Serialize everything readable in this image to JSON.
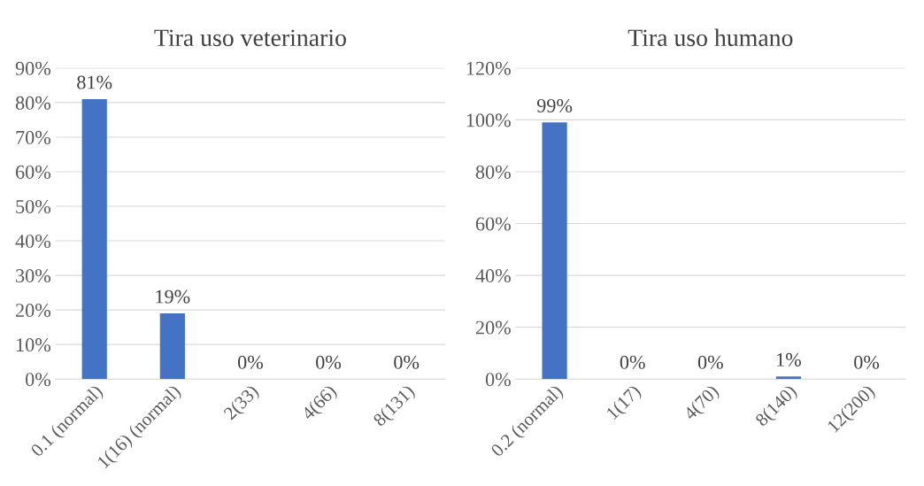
{
  "chart_data": [
    {
      "type": "bar",
      "title": "Tira uso veterinario",
      "categories": [
        "0.1 (normal)",
        "1(16) (normal)",
        "2(33)",
        "4(66)",
        "8(131)"
      ],
      "series": [
        {
          "color": "#4472c4",
          "values": [
            81,
            19,
            0,
            0,
            0
          ],
          "value_labels": [
            "81%",
            "19%",
            "0%",
            "0%",
            "0%"
          ]
        }
      ],
      "ylim": [
        0,
        90
      ],
      "yticks": [
        {
          "value": 0,
          "label": "0%"
        },
        {
          "value": 10,
          "label": "10%"
        },
        {
          "value": 20,
          "label": "20%"
        },
        {
          "value": 30,
          "label": "30%"
        },
        {
          "value": 40,
          "label": "40%"
        },
        {
          "value": 50,
          "label": "50%"
        },
        {
          "value": 60,
          "label": "60%"
        },
        {
          "value": 70,
          "label": "70%"
        },
        {
          "value": 80,
          "label": "80%"
        },
        {
          "value": 90,
          "label": "90%"
        }
      ],
      "grid": "y",
      "legend": false
    },
    {
      "type": "bar",
      "title": "Tira uso humano",
      "categories": [
        "0.2 (normal)",
        "1(17)",
        "4(70)",
        "8(140)",
        "12(200)"
      ],
      "series": [
        {
          "color": "#4472c4",
          "values": [
            99,
            0,
            0,
            1,
            0
          ],
          "value_labels": [
            "99%",
            "0%",
            "0%",
            "1%",
            "0%"
          ]
        }
      ],
      "ylim": [
        0,
        120
      ],
      "yticks": [
        {
          "value": 0,
          "label": "0%"
        },
        {
          "value": 20,
          "label": "20%"
        },
        {
          "value": 40,
          "label": "40%"
        },
        {
          "value": 60,
          "label": "60%"
        },
        {
          "value": 80,
          "label": "80%"
        },
        {
          "value": 100,
          "label": "100%"
        },
        {
          "value": 120,
          "label": "120%"
        }
      ],
      "grid": "y",
      "legend": false
    }
  ]
}
